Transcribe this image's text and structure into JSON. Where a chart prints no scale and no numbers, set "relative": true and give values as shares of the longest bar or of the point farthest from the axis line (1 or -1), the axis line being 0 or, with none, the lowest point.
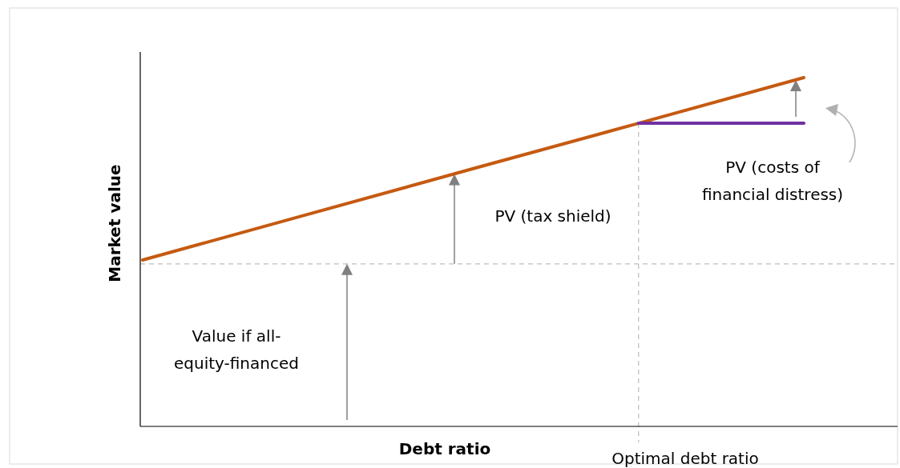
{
  "chart_data": {
    "type": "line",
    "relative": true,
    "xlabel": "Debt ratio",
    "ylabel": "Market value",
    "categories": [
      null,
      null,
      null,
      null,
      null
    ],
    "series": [
      {
        "color": "#c55a11",
        "values": [
          0.477,
          0.608,
          0.739,
          0.869,
          1
        ]
      },
      {
        "color": "#7030a0",
        "values": [
          null,
          null,
          null,
          0.869,
          0.869
        ]
      }
    ],
    "ref_lines": [
      {
        "axis": "y",
        "value": 0.466,
        "color": "#c0c0c0",
        "line_style": "dashed"
      }
    ],
    "annotations": [
      "Value if all-equity-financed",
      "PV (tax shield)",
      "PV (costs of financial distress)",
      "Optimal debt ratio"
    ],
    "marker": "none",
    "line_style": "solid"
  }
}
